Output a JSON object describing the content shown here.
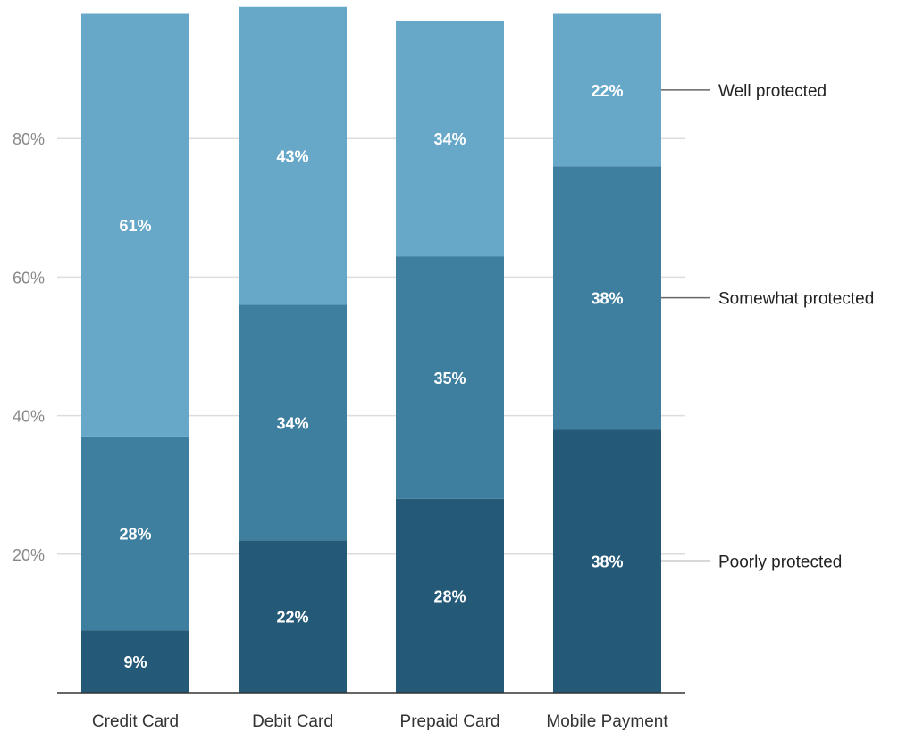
{
  "chart_data": {
    "type": "bar",
    "stacked": true,
    "categories": [
      "Credit Card",
      "Debit Card",
      "Prepaid Card",
      "Mobile Payment"
    ],
    "series": [
      {
        "name": "Poorly protected",
        "values": [
          9,
          22,
          28,
          38
        ],
        "color": "#245a78"
      },
      {
        "name": "Somewhat protected",
        "values": [
          28,
          34,
          35,
          38
        ],
        "color": "#3e7f9f"
      },
      {
        "name": "Well protected",
        "values": [
          61,
          43,
          34,
          22
        ],
        "color": "#67a8c9"
      }
    ],
    "data_labels": true,
    "ylim": [
      0,
      100
    ],
    "yticks": [
      "20%",
      "40%",
      "60%",
      "80%"
    ],
    "ytick_values": [
      20,
      40,
      60,
      80
    ],
    "grid": true,
    "legend_placement": "right, inline labels"
  }
}
